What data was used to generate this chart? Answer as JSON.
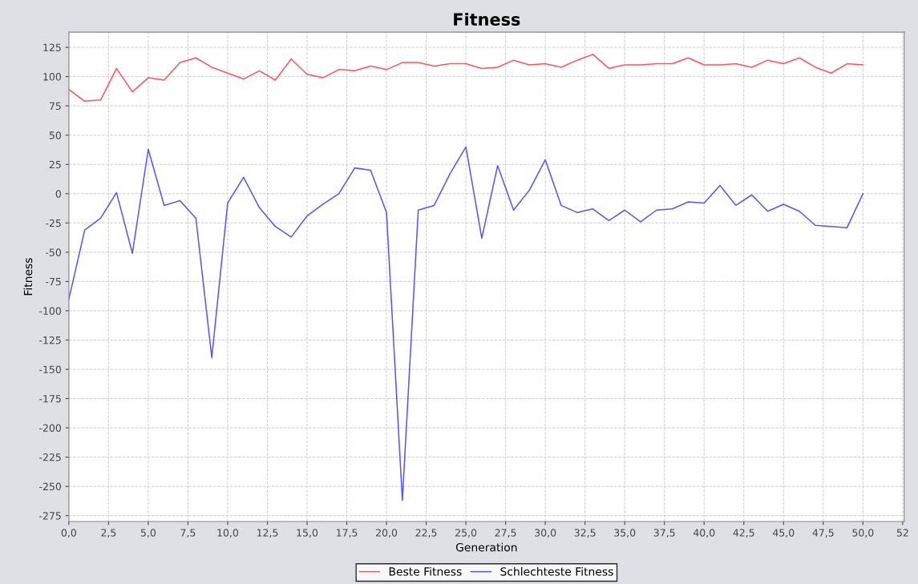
{
  "chart_data": {
    "type": "line",
    "title": "Fitness",
    "xlabel": "Generation",
    "ylabel": "Fitness",
    "x": [
      0,
      1,
      2,
      3,
      4,
      5,
      6,
      7,
      8,
      9,
      10,
      11,
      12,
      13,
      14,
      15,
      16,
      17,
      18,
      19,
      20,
      21,
      22,
      23,
      24,
      25,
      26,
      27,
      28,
      29,
      30,
      31,
      32,
      33,
      34,
      35,
      36,
      37,
      38,
      39,
      40,
      41,
      42,
      43,
      44,
      45,
      46,
      47,
      48,
      49,
      50
    ],
    "series": [
      {
        "name": "Beste Fitness",
        "color": "#ff5555",
        "values": [
          89,
          79,
          80,
          107,
          87,
          99,
          97,
          112,
          116,
          108,
          103,
          98,
          105,
          97,
          115,
          102,
          99,
          106,
          105,
          109,
          106,
          112,
          112,
          109,
          111,
          111,
          107,
          108,
          114,
          110,
          111,
          108,
          114,
          119,
          107,
          110,
          110,
          111,
          111,
          116,
          110,
          110,
          111,
          108,
          114,
          111,
          116,
          108,
          103,
          111,
          110
        ]
      },
      {
        "name": "Schlechteste Fitness",
        "color": "#5555ff",
        "values": [
          -90,
          -31,
          -21,
          1,
          -51,
          38,
          -10,
          -6,
          -21,
          -140,
          -8,
          14,
          -12,
          -28,
          -37,
          -19,
          -9,
          0,
          22,
          20,
          -16,
          -262,
          -14,
          -10,
          17,
          40,
          -38,
          24,
          -14,
          3,
          29,
          -10,
          -16,
          -13,
          -23,
          -14,
          -24,
          -14,
          -13,
          -7,
          -8,
          7,
          -10,
          -1,
          -15,
          -9,
          -15,
          -27,
          -28,
          -29,
          0
        ]
      }
    ],
    "xlim": [
      0,
      52.6
    ],
    "ylim": [
      -280,
      138
    ],
    "xticks": [
      {
        "value": 0,
        "label": "0,0"
      },
      {
        "value": 2.5,
        "label": "2,5"
      },
      {
        "value": 5,
        "label": "5,0"
      },
      {
        "value": 7.5,
        "label": "7,5"
      },
      {
        "value": 10,
        "label": "10,0"
      },
      {
        "value": 12.5,
        "label": "12,5"
      },
      {
        "value": 15,
        "label": "15,0"
      },
      {
        "value": 17.5,
        "label": "17,5"
      },
      {
        "value": 20,
        "label": "20,0"
      },
      {
        "value": 22.5,
        "label": "22,5"
      },
      {
        "value": 25,
        "label": "25,0"
      },
      {
        "value": 27.5,
        "label": "27,5"
      },
      {
        "value": 30,
        "label": "30,0"
      },
      {
        "value": 32.5,
        "label": "32,5"
      },
      {
        "value": 35,
        "label": "35,0"
      },
      {
        "value": 37.5,
        "label": "37,5"
      },
      {
        "value": 40,
        "label": "40,0"
      },
      {
        "value": 42.5,
        "label": "42,5"
      },
      {
        "value": 45,
        "label": "45,0"
      },
      {
        "value": 47.5,
        "label": "47,5"
      },
      {
        "value": 50,
        "label": "50,0"
      },
      {
        "value": 52.5,
        "label": "52"
      }
    ],
    "yticks": [
      -275,
      -250,
      -225,
      -200,
      -175,
      -150,
      -125,
      -100,
      -75,
      -50,
      -25,
      0,
      25,
      50,
      75,
      100,
      125
    ],
    "grid": true,
    "legend": "bottom",
    "marker": "none",
    "line_style": "solid"
  }
}
